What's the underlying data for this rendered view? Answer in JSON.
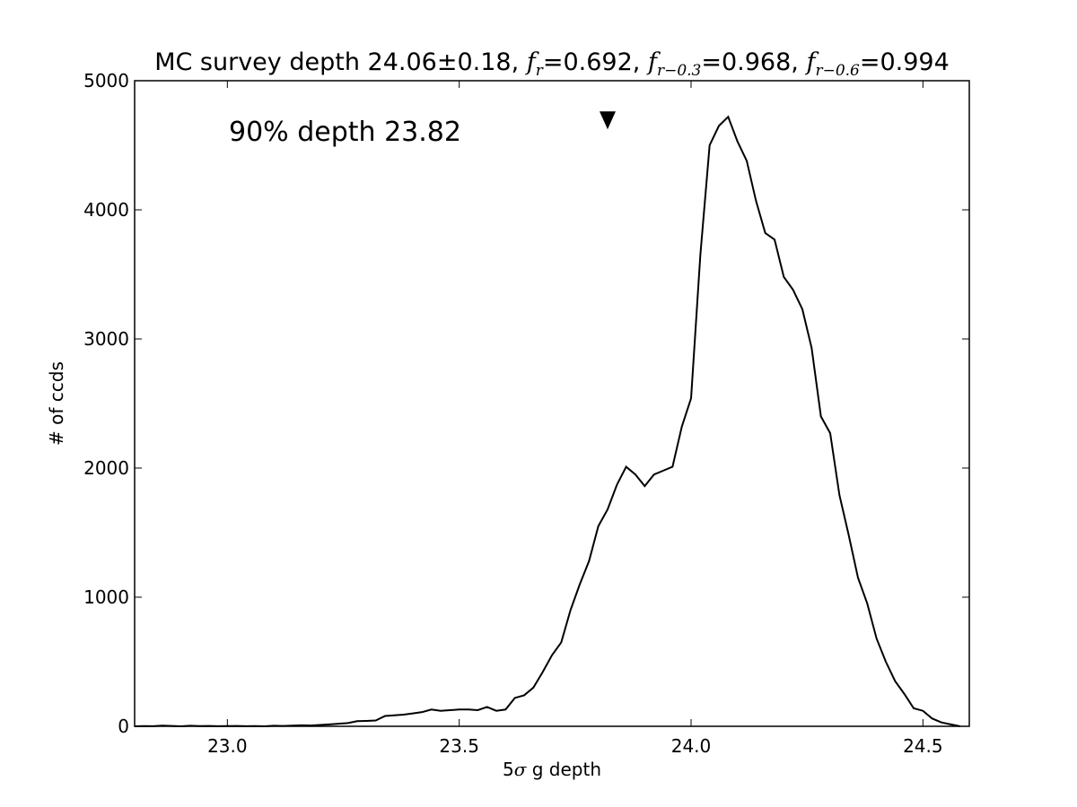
{
  "chart_data": {
    "type": "line",
    "title": {
      "prefix": "MC survey depth 24.06",
      "pm": "±0.18, ",
      "fr_label": "f",
      "fr_sub": "r",
      "fr_value": "=0.692, ",
      "fr3_label": "f",
      "fr3_sub": "r−0.3",
      "fr3_value": "=0.968, ",
      "fr6_label": "f",
      "fr6_sub": "r−0.6",
      "fr6_value": "=0.994"
    },
    "xlabel": {
      "prefix": "5",
      "sigma": "σ",
      "suffix": " g depth"
    },
    "ylabel": "# of ccds",
    "annotation": "90% depth 23.82",
    "marker": {
      "x": 23.82,
      "y": 4700
    },
    "xlim": [
      22.8,
      24.6
    ],
    "ylim": [
      0,
      5000
    ],
    "xticks": [
      "23.0",
      "23.5",
      "24.0",
      "24.5"
    ],
    "yticks": [
      "0",
      "1000",
      "2000",
      "3000",
      "4000",
      "5000"
    ],
    "line_color": "#000000",
    "series": [
      {
        "x": [
          22.8,
          22.82,
          22.84,
          22.86,
          22.88,
          22.9,
          22.92,
          22.94,
          22.96,
          22.98,
          23.0,
          23.02,
          23.04,
          23.06,
          23.08,
          23.1,
          23.12,
          23.14,
          23.16,
          23.18,
          23.2,
          23.22,
          23.24,
          23.26,
          23.28,
          23.3,
          23.32,
          23.34,
          23.36,
          23.38,
          23.4,
          23.42,
          23.44,
          23.46,
          23.48,
          23.5,
          23.52,
          23.54,
          23.56,
          23.58,
          23.6,
          23.62,
          23.64,
          23.66,
          23.68,
          23.7,
          23.72,
          23.74,
          23.76,
          23.78,
          23.8,
          23.82,
          23.84,
          23.86,
          23.88,
          23.9,
          23.92,
          23.94,
          23.96,
          23.98,
          24.0,
          24.02,
          24.04,
          24.06,
          24.08,
          24.1,
          24.12,
          24.14,
          24.16,
          24.18,
          24.2,
          24.22,
          24.24,
          24.26,
          24.28,
          24.3,
          24.32,
          24.34,
          24.36,
          24.38,
          24.4,
          24.42,
          24.44,
          24.46,
          24.48,
          24.5,
          24.52,
          24.54,
          24.56,
          24.58
        ],
        "values": [
          0,
          2,
          1,
          5,
          3,
          0,
          4,
          2,
          3,
          1,
          2,
          3,
          1,
          2,
          0,
          4,
          3,
          5,
          8,
          6,
          10,
          15,
          20,
          25,
          40,
          42,
          45,
          80,
          85,
          90,
          100,
          110,
          130,
          120,
          125,
          130,
          130,
          125,
          150,
          120,
          130,
          220,
          240,
          300,
          420,
          550,
          650,
          900,
          1100,
          1280,
          1550,
          1680,
          1870,
          2010,
          1950,
          1860,
          1950,
          1980,
          2010,
          2320,
          2540,
          3650,
          4500,
          4650,
          4720,
          4530,
          4380,
          4070,
          3820,
          3770,
          3480,
          3380,
          3230,
          2930,
          2400,
          2270,
          1790,
          1480,
          1150,
          950,
          680,
          500,
          350,
          250,
          140,
          120,
          60,
          30,
          15,
          0
        ]
      }
    ]
  }
}
